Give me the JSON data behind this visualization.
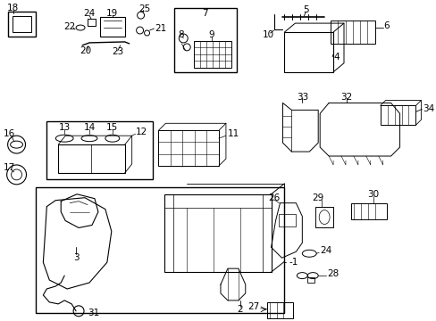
{
  "bg_color": "#ffffff",
  "fig_width": 4.89,
  "fig_height": 3.6,
  "dpi": 100,
  "font_size": 7.5
}
